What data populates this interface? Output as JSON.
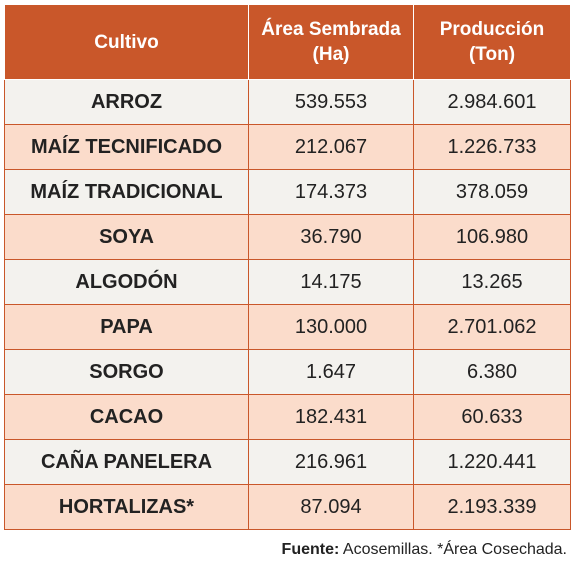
{
  "table": {
    "headers": [
      "Cultivo",
      "Área Sembrada (Ha)",
      "Producción (Ton)"
    ],
    "rows": [
      {
        "cultivo": "ARROZ",
        "area": "539.553",
        "produccion": "2.984.601"
      },
      {
        "cultivo": "MAÍZ TECNIFICADO",
        "area": "212.067",
        "produccion": "1.226.733"
      },
      {
        "cultivo": "MAÍZ TRADICIONAL",
        "area": "174.373",
        "produccion": "378.059"
      },
      {
        "cultivo": "SOYA",
        "area": "36.790",
        "produccion": "106.980"
      },
      {
        "cultivo": "ALGODÓN",
        "area": "14.175",
        "produccion": "13.265"
      },
      {
        "cultivo": "PAPA",
        "area": "130.000",
        "produccion": "2.701.062"
      },
      {
        "cultivo": "SORGO",
        "area": "1.647",
        "produccion": "6.380"
      },
      {
        "cultivo": "CACAO",
        "area": "182.431",
        "produccion": "60.633"
      },
      {
        "cultivo": "CAÑA PANELERA",
        "area": "216.961",
        "produccion": "1.220.441"
      },
      {
        "cultivo": "HORTALIZAS*",
        "area": "87.094",
        "produccion": "2.193.339"
      }
    ]
  },
  "footer": {
    "label": "Fuente:",
    "text": "Acosemillas. *Área Cosechada."
  },
  "colors": {
    "header_bg": "#c9572a",
    "row_light": "#f3f2ee",
    "row_peach": "#fbdccb"
  }
}
